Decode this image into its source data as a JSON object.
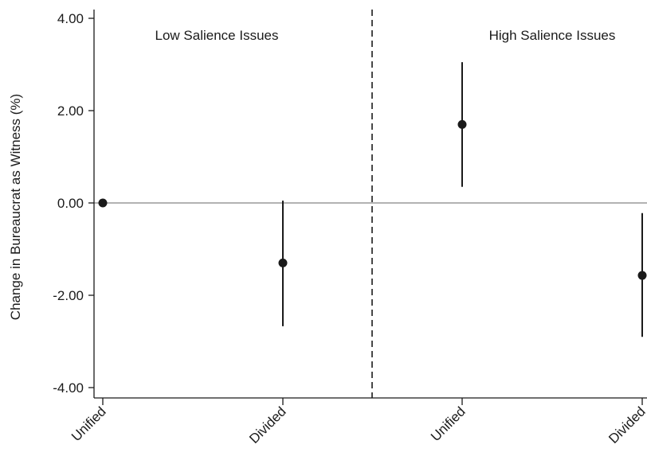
{
  "chart_data": {
    "type": "scatter",
    "ylabel": "Change in Bureaucrat as Witness (%)",
    "categories": [
      "Unified",
      "Divided",
      "Unified",
      "Divided"
    ],
    "y_ticks": [
      "4.00",
      "2.00",
      "0.00",
      "-2.00",
      "-4.00"
    ],
    "y_tick_values": [
      4,
      2,
      0,
      -2,
      -4
    ],
    "ylim": [
      -4.2,
      4.15
    ],
    "reference_line_y": 0,
    "panels": [
      "Low Salience Issues",
      "High Salience Issues"
    ],
    "points": [
      {
        "category": "Unified",
        "panel": "Low Salience Issues",
        "value": 0.0,
        "lower": null,
        "upper": null
      },
      {
        "category": "Divided",
        "panel": "Low Salience Issues",
        "value": -1.3,
        "lower": -2.67,
        "upper": 0.05
      },
      {
        "category": "Unified",
        "panel": "High Salience Issues",
        "value": 1.7,
        "lower": 0.35,
        "upper": 3.05
      },
      {
        "category": "Divided",
        "panel": "High Salience Issues",
        "value": -1.57,
        "lower": -2.9,
        "upper": -0.22
      }
    ],
    "grid": false,
    "legend": "none"
  },
  "colors": {
    "marker": "#1a1a1a",
    "axis": "#1a1a1a",
    "zero_line": "#9a9a9a",
    "divider": "#1a1a1a"
  }
}
